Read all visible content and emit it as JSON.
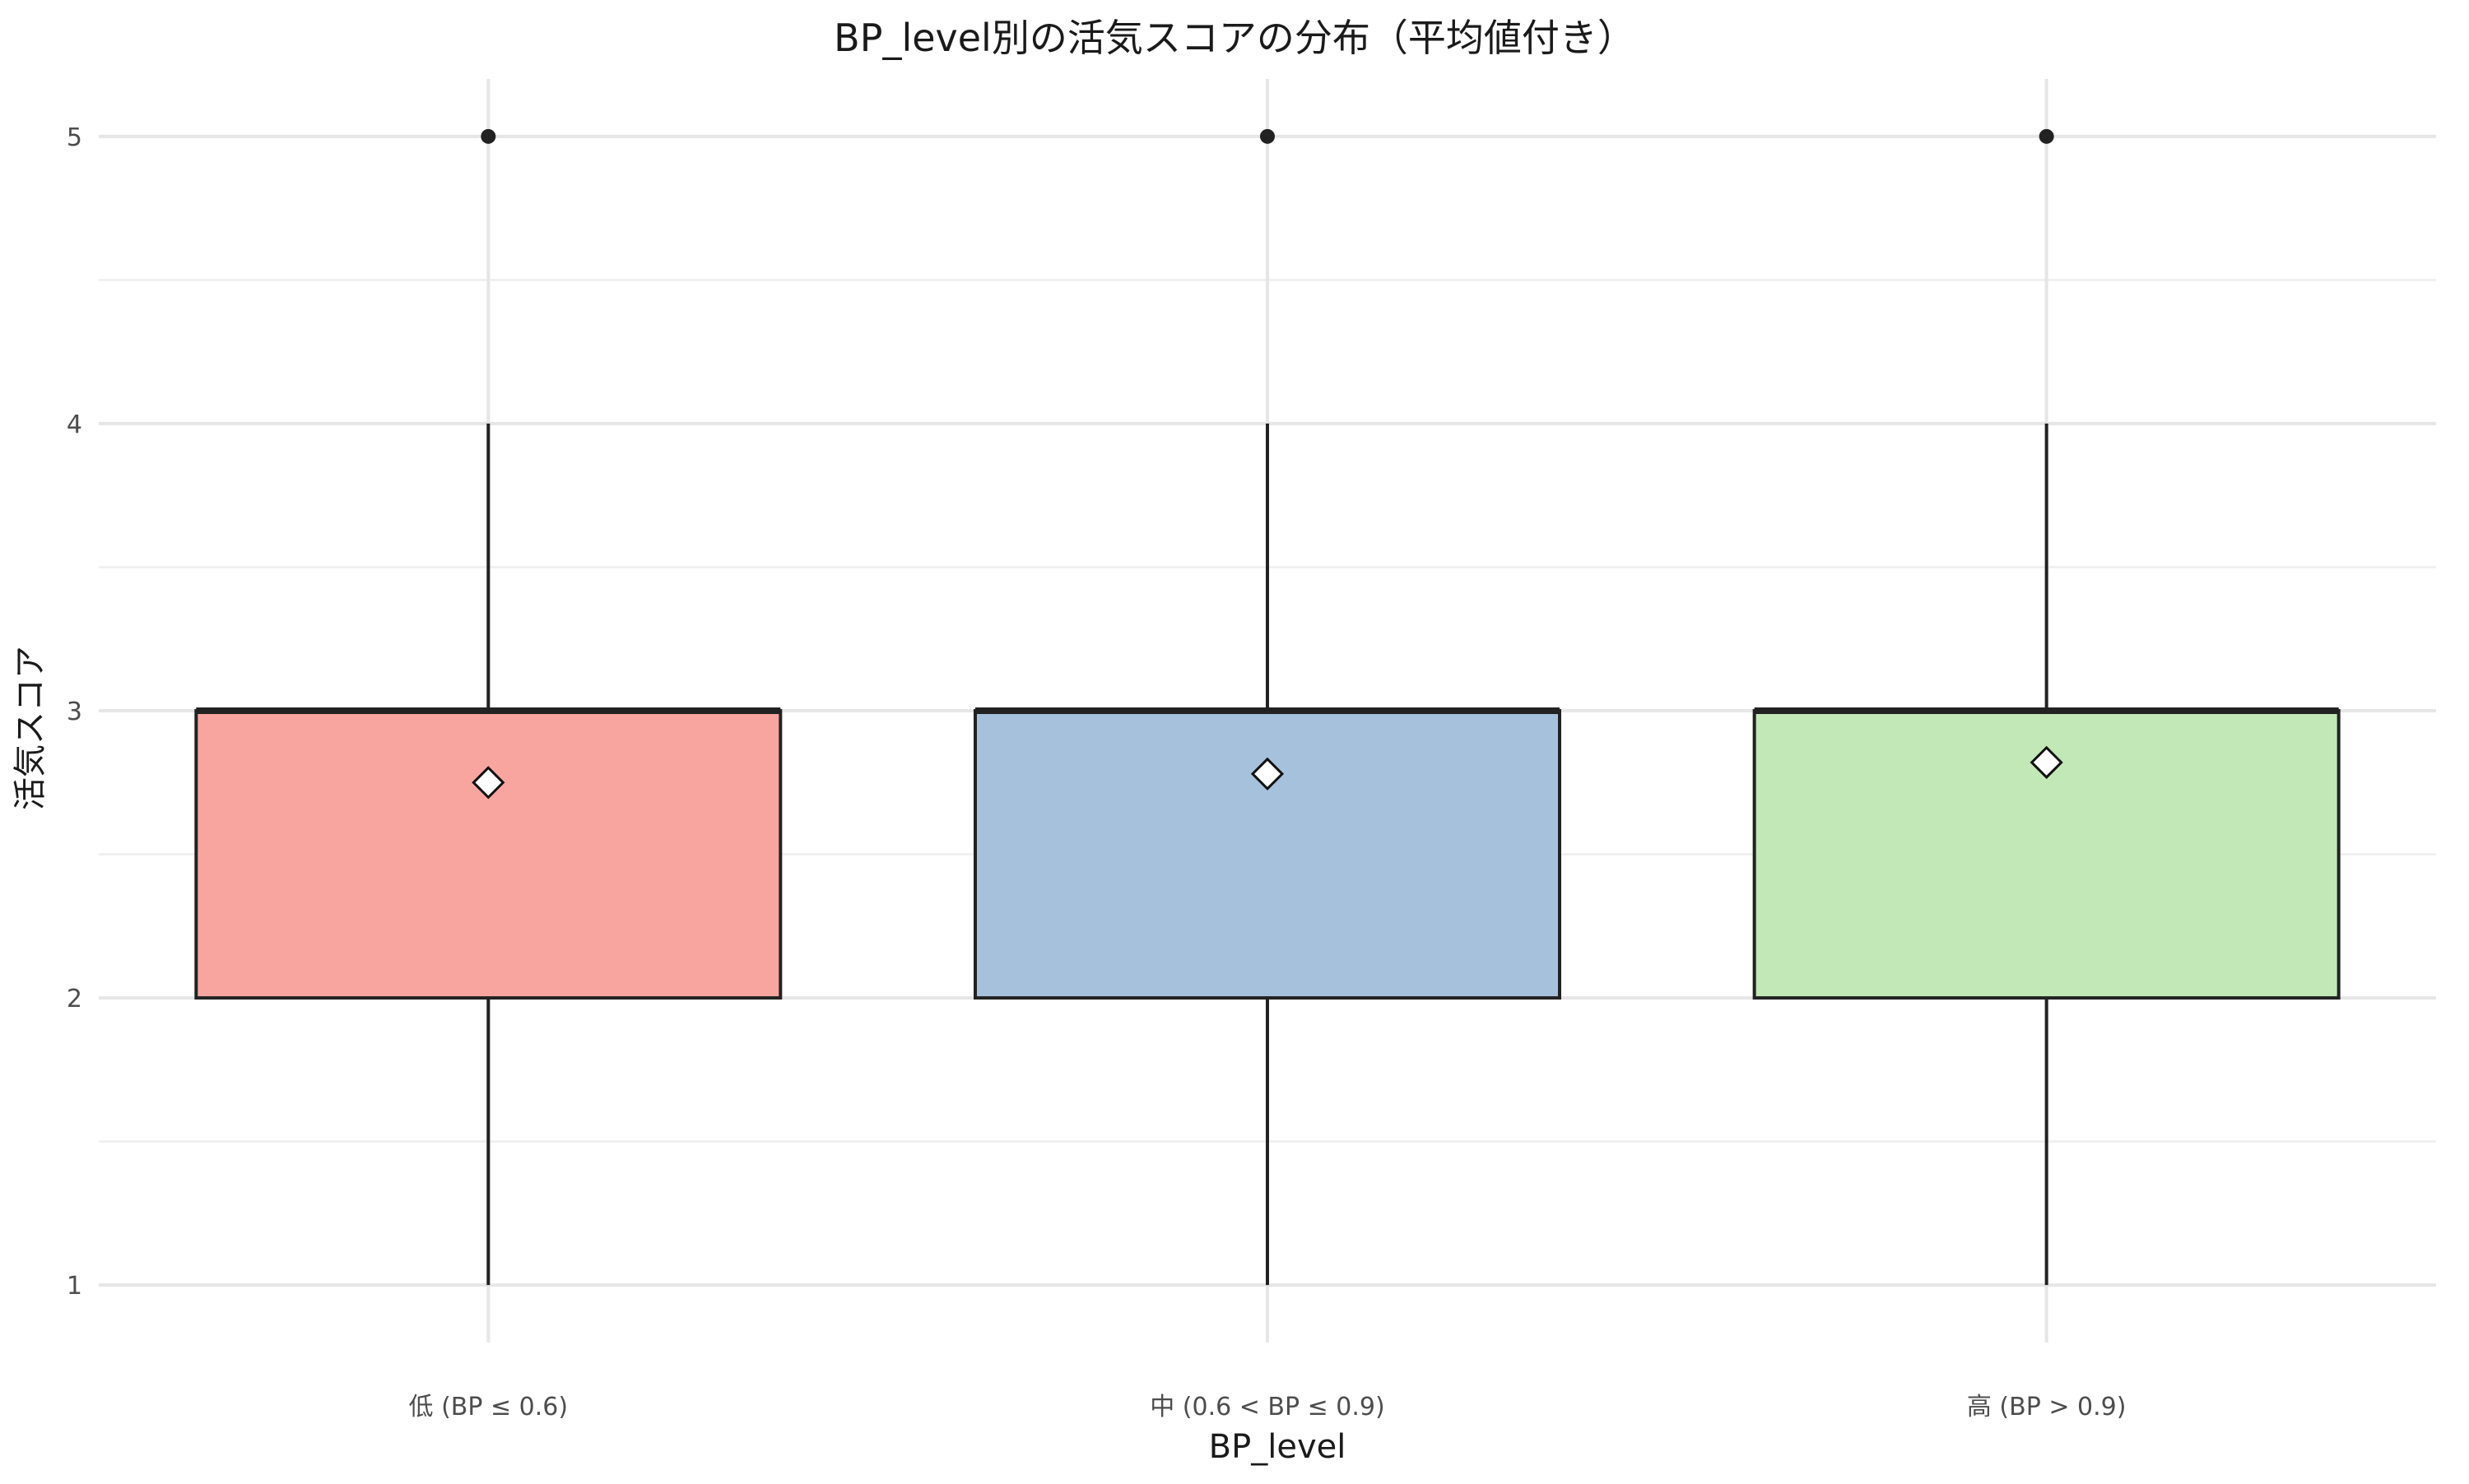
{
  "chart_data": {
    "type": "box",
    "title": "BP_level別の活気スコアの分布（平均値付き）",
    "xlabel": "BP_level",
    "ylabel": "活気スコア",
    "ylim": [
      0.8,
      5.2
    ],
    "yticks": [
      "1",
      "2",
      "3",
      "4",
      "5"
    ],
    "grid": true,
    "legend": "none",
    "categories": [
      "低 (BP ≤ 0.6)",
      "中 (0.6 < BP ≤ 0.9)",
      "高 (BP > 0.9)"
    ],
    "boxes": [
      {
        "category": "低 (BP ≤ 0.6)",
        "whisker_low": 1,
        "q1": 2,
        "median": 3,
        "q3": 3,
        "whisker_high": 4,
        "outliers": [
          5
        ],
        "mean": 2.75,
        "color": "#F8A5A0"
      },
      {
        "category": "中 (0.6 < BP ≤ 0.9)",
        "whisker_low": 1,
        "q1": 2,
        "median": 3,
        "q3": 3,
        "whisker_high": 4,
        "outliers": [
          5
        ],
        "mean": 2.78,
        "color": "#A6C1DC"
      },
      {
        "category": "高 (BP > 0.9)",
        "whisker_low": 1,
        "q1": 2,
        "median": 3,
        "q3": 3,
        "whisker_high": 4,
        "outliers": [
          5
        ],
        "mean": 2.82,
        "color": "#C3E8B7"
      }
    ]
  }
}
